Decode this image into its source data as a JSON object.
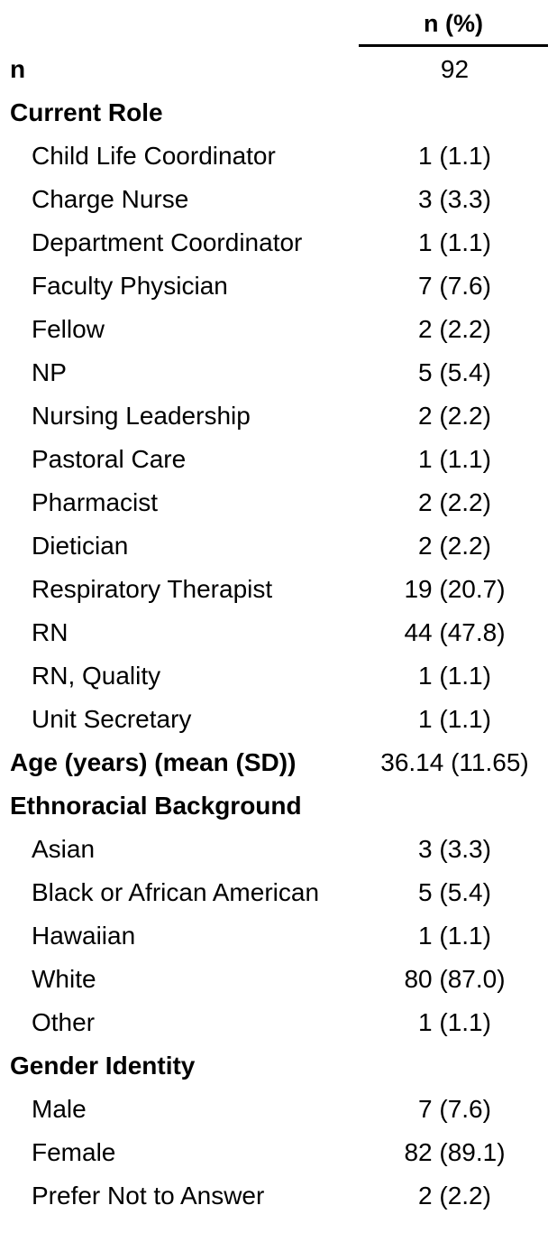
{
  "header": {
    "column_label": "n (%)"
  },
  "rows": [
    {
      "label": "n",
      "value": "92",
      "kind": "section"
    },
    {
      "label": "Current Role",
      "value": "",
      "kind": "section"
    },
    {
      "label": "Child Life Coordinator",
      "value": "1 (1.1)",
      "kind": "item"
    },
    {
      "label": "Charge Nurse",
      "value": "3 (3.3)",
      "kind": "item"
    },
    {
      "label": "Department Coordinator",
      "value": "1 (1.1)",
      "kind": "item"
    },
    {
      "label": "Faculty Physician",
      "value": "7 (7.6)",
      "kind": "item"
    },
    {
      "label": "Fellow",
      "value": "2 (2.2)",
      "kind": "item"
    },
    {
      "label": "NP",
      "value": "5 (5.4)",
      "kind": "item"
    },
    {
      "label": "Nursing Leadership",
      "value": "2 (2.2)",
      "kind": "item"
    },
    {
      "label": "Pastoral Care",
      "value": "1 (1.1)",
      "kind": "item"
    },
    {
      "label": "Pharmacist",
      "value": "2 (2.2)",
      "kind": "item"
    },
    {
      "label": "Dietician",
      "value": "2 (2.2)",
      "kind": "item"
    },
    {
      "label": "Respiratory Therapist",
      "value": "19 (20.7)",
      "kind": "item"
    },
    {
      "label": "RN",
      "value": "44 (47.8)",
      "kind": "item"
    },
    {
      "label": "RN, Quality",
      "value": "1 (1.1)",
      "kind": "item"
    },
    {
      "label": "Unit Secretary",
      "value": "1 (1.1)",
      "kind": "item"
    },
    {
      "label": "Age (years) (mean (SD))",
      "value": "36.14 (11.65)",
      "kind": "section"
    },
    {
      "label": "Ethnoracial Background",
      "value": "",
      "kind": "section"
    },
    {
      "label": "Asian",
      "value": "3 (3.3)",
      "kind": "item"
    },
    {
      "label": "Black or African American",
      "value": "5 (5.4)",
      "kind": "item"
    },
    {
      "label": "Hawaiian",
      "value": "1 (1.1)",
      "kind": "item"
    },
    {
      "label": "White",
      "value": "80 (87.0)",
      "kind": "item"
    },
    {
      "label": "Other",
      "value": "1 (1.1)",
      "kind": "item"
    },
    {
      "label": "Gender Identity",
      "value": "",
      "kind": "section"
    },
    {
      "label": "Male",
      "value": "7 (7.6)",
      "kind": "item"
    },
    {
      "label": "Female",
      "value": "82 (89.1)",
      "kind": "item"
    },
    {
      "label": "Prefer Not to Answer",
      "value": "2 (2.2)",
      "kind": "item"
    }
  ]
}
